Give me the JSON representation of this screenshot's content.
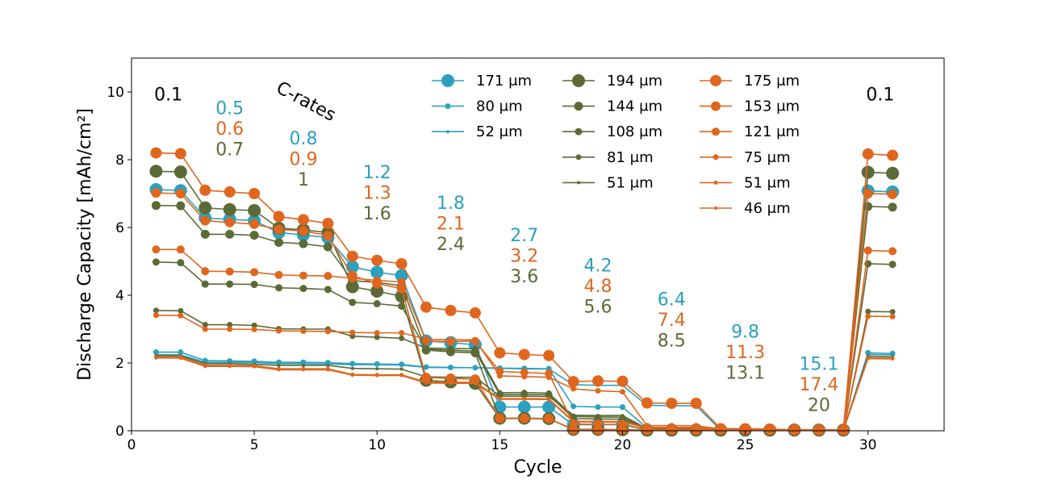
{
  "chart_data": {
    "type": "line",
    "xlabel": "Cycle",
    "ylabel": "Discharge Capacity [mAh/cm²]",
    "xlim": [
      0,
      33.1
    ],
    "ylim": [
      0,
      11
    ],
    "xticks": [
      0,
      5,
      10,
      15,
      20,
      25,
      30
    ],
    "yticks": [
      0,
      2,
      4,
      6,
      8,
      10
    ],
    "grid": false,
    "legend_position": "top-center",
    "colors": {
      "blue": "#2ca0c0",
      "olive": "#5b6b36",
      "orange": "#e0661e"
    },
    "x": [
      1,
      2,
      3,
      4,
      5,
      6,
      7,
      8,
      9,
      10,
      11,
      12,
      13,
      14,
      15,
      16,
      17,
      18,
      19,
      20,
      21,
      22,
      23,
      24,
      25,
      26,
      27,
      28,
      29,
      30,
      31
    ],
    "series": [
      {
        "name": "171 μm",
        "color": "blue",
        "size": 8,
        "values": [
          7.12,
          7.09,
          6.28,
          6.24,
          6.2,
          5.85,
          5.78,
          5.7,
          4.84,
          4.68,
          4.58,
          2.65,
          2.6,
          2.54,
          0.7,
          0.7,
          0.7,
          0.18,
          0.18,
          0.18,
          0.02,
          0.02,
          0.02,
          0.02,
          0.02,
          0.02,
          0.02,
          0.02,
          0.02,
          7.08,
          7.05
        ]
      },
      {
        "name": "80 μm",
        "color": "blue",
        "size": 3.5,
        "values": [
          2.32,
          2.32,
          2.07,
          2.06,
          2.05,
          2.02,
          2.02,
          2.01,
          1.98,
          1.97,
          1.96,
          1.88,
          1.87,
          1.86,
          1.85,
          1.84,
          1.83,
          0.72,
          0.7,
          0.7,
          0.08,
          0.07,
          0.07,
          0.02,
          0.02,
          0.02,
          0.02,
          0.02,
          0.02,
          2.3,
          2.28
        ]
      },
      {
        "name": "52 μm",
        "color": "blue",
        "size": 2,
        "values": [
          2.25,
          2.24,
          2.02,
          2.02,
          2.01,
          1.98,
          1.98,
          1.97,
          1.95,
          1.95,
          1.94,
          1.87,
          1.86,
          1.86,
          1.84,
          1.83,
          1.82,
          1.36,
          1.34,
          1.34,
          0.75,
          0.74,
          0.74,
          0.02,
          0.02,
          0.02,
          0.02,
          0.02,
          0.02,
          2.25,
          2.24
        ]
      },
      {
        "name": "194 μm",
        "color": "olive",
        "size": 8,
        "values": [
          7.66,
          7.64,
          6.58,
          6.53,
          6.5,
          5.98,
          5.93,
          5.85,
          4.25,
          4.12,
          3.97,
          1.49,
          1.44,
          1.4,
          0.37,
          0.37,
          0.36,
          0.04,
          0.04,
          0.03,
          0.02,
          0.02,
          0.02,
          0.02,
          0.02,
          0.02,
          0.02,
          0.02,
          0.02,
          7.63,
          7.6
        ]
      },
      {
        "name": "144 μm",
        "color": "olive",
        "size": 5.5,
        "values": [
          6.65,
          6.64,
          5.8,
          5.8,
          5.77,
          5.56,
          5.52,
          5.43,
          4.43,
          4.38,
          4.28,
          2.38,
          2.33,
          2.3,
          0.36,
          0.36,
          0.35,
          0.04,
          0.04,
          0.03,
          0.02,
          0.02,
          0.02,
          0.02,
          0.02,
          0.02,
          0.02,
          0.02,
          0.02,
          6.62,
          6.6
        ]
      },
      {
        "name": "108 μm",
        "color": "olive",
        "size": 4.5,
        "values": [
          4.98,
          4.96,
          4.33,
          4.33,
          4.32,
          4.22,
          4.2,
          4.17,
          3.79,
          3.75,
          3.68,
          2.4,
          2.38,
          2.35,
          1.07,
          1.07,
          1.06,
          0.36,
          0.35,
          0.34,
          0.04,
          0.04,
          0.04,
          0.02,
          0.02,
          0.02,
          0.02,
          0.02,
          0.02,
          4.93,
          4.91
        ]
      },
      {
        "name": "81 μm",
        "color": "olive",
        "size": 3.5,
        "values": [
          3.55,
          3.54,
          3.13,
          3.13,
          3.11,
          3.01,
          3.0,
          3.0,
          2.79,
          2.76,
          2.73,
          2.44,
          2.43,
          2.42,
          1.12,
          1.13,
          1.11,
          0.42,
          0.41,
          0.4,
          0.04,
          0.04,
          0.04,
          0.02,
          0.02,
          0.02,
          0.02,
          0.02,
          0.02,
          3.52,
          3.51
        ]
      },
      {
        "name": "51 μm",
        "color": "olive",
        "size": 2,
        "values": [
          2.22,
          2.21,
          1.98,
          1.98,
          1.96,
          1.93,
          1.93,
          1.93,
          1.84,
          1.83,
          1.82,
          1.59,
          1.58,
          1.58,
          1.02,
          1.02,
          1.01,
          0.46,
          0.45,
          0.45,
          0.06,
          0.06,
          0.06,
          0.02,
          0.02,
          0.02,
          0.02,
          0.02,
          0.02,
          2.2,
          2.18
        ]
      },
      {
        "name": "175 μm",
        "color": "orange",
        "size": 7,
        "values": [
          8.2,
          8.18,
          7.1,
          7.05,
          7.0,
          6.32,
          6.23,
          6.12,
          5.15,
          5.03,
          4.93,
          3.65,
          3.55,
          3.48,
          2.3,
          2.25,
          2.22,
          1.45,
          1.47,
          1.46,
          0.82,
          0.81,
          0.81,
          0.06,
          0.06,
          0.05,
          0.03,
          0.03,
          0.03,
          8.17,
          8.13
        ]
      },
      {
        "name": "153 μm",
        "color": "orange",
        "size": 6,
        "values": [
          7.02,
          7.0,
          6.2,
          6.15,
          6.1,
          5.94,
          5.9,
          5.76,
          4.58,
          4.34,
          4.2,
          1.57,
          1.55,
          1.52,
          0.37,
          0.37,
          0.36,
          0.03,
          0.03,
          0.03,
          0.02,
          0.02,
          0.02,
          0.02,
          0.02,
          0.02,
          0.02,
          0.02,
          0.02,
          7.0,
          6.98
        ]
      },
      {
        "name": "121 μm",
        "color": "orange",
        "size": 5,
        "values": [
          5.35,
          5.35,
          4.71,
          4.7,
          4.68,
          4.6,
          4.58,
          4.57,
          4.5,
          4.44,
          4.39,
          2.65,
          2.63,
          2.65,
          1.75,
          1.72,
          1.69,
          0.2,
          0.19,
          0.19,
          0.04,
          0.04,
          0.04,
          0.02,
          0.02,
          0.02,
          0.02,
          0.02,
          0.02,
          5.32,
          5.3
        ]
      },
      {
        "name": "75 μm",
        "color": "orange",
        "size": 3.5,
        "values": [
          3.41,
          3.4,
          3.0,
          3.0,
          2.99,
          2.95,
          2.94,
          2.93,
          2.9,
          2.89,
          2.89,
          2.7,
          2.69,
          2.68,
          1.62,
          1.6,
          1.58,
          1.24,
          1.18,
          1.15,
          0.15,
          0.15,
          0.15,
          0.05,
          0.05,
          0.04,
          0.03,
          0.03,
          0.03,
          3.38,
          3.37
        ]
      },
      {
        "name": "51 μm",
        "color": "orange",
        "size": 2.5,
        "values": [
          2.18,
          2.18,
          1.93,
          1.93,
          1.92,
          1.83,
          1.83,
          1.83,
          1.66,
          1.65,
          1.65,
          1.44,
          1.43,
          1.43,
          0.95,
          0.95,
          0.94,
          0.28,
          0.28,
          0.27,
          0.1,
          0.1,
          0.1,
          0.03,
          0.03,
          0.03,
          0.02,
          0.02,
          0.02,
          2.15,
          2.14
        ]
      },
      {
        "name": "46 μm",
        "color": "orange",
        "size": 2,
        "values": [
          2.15,
          2.14,
          1.9,
          1.9,
          1.89,
          1.8,
          1.8,
          1.8,
          1.64,
          1.63,
          1.63,
          1.41,
          1.4,
          1.4,
          0.93,
          0.93,
          0.92,
          0.26,
          0.26,
          0.25,
          0.09,
          0.09,
          0.09,
          0.02,
          0.02,
          0.02,
          0.02,
          0.02,
          0.02,
          2.13,
          2.12
        ]
      }
    ],
    "legend_columns": [
      [
        0,
        1,
        2
      ],
      [
        3,
        4,
        5,
        6,
        7
      ],
      [
        8,
        9,
        10,
        11,
        12,
        13
      ]
    ],
    "annotations": {
      "crates_label": "C-rates",
      "groups": [
        {
          "x": 1.5,
          "y": 9.75,
          "lines": [
            {
              "text": "0.1",
              "color": "black"
            }
          ]
        },
        {
          "x": 30.5,
          "y": 9.75,
          "lines": [
            {
              "text": "0.1",
              "color": "black"
            }
          ]
        },
        {
          "x": 4.0,
          "y": 9.35,
          "lines": [
            {
              "text": "0.5",
              "color": "blue"
            },
            {
              "text": "0.6",
              "color": "orange"
            },
            {
              "text": "0.7",
              "color": "olive"
            }
          ]
        },
        {
          "x": 7.0,
          "y": 8.45,
          "lines": [
            {
              "text": "0.8",
              "color": "blue"
            },
            {
              "text": "0.9",
              "color": "orange"
            },
            {
              "text": "1",
              "color": "olive"
            }
          ]
        },
        {
          "x": 10.0,
          "y": 7.45,
          "lines": [
            {
              "text": "1.2",
              "color": "blue"
            },
            {
              "text": "1.3",
              "color": "orange"
            },
            {
              "text": "1.6",
              "color": "olive"
            }
          ]
        },
        {
          "x": 13.0,
          "y": 6.55,
          "lines": [
            {
              "text": "1.8",
              "color": "blue"
            },
            {
              "text": "2.1",
              "color": "orange"
            },
            {
              "text": "2.4",
              "color": "olive"
            }
          ]
        },
        {
          "x": 16.0,
          "y": 5.6,
          "lines": [
            {
              "text": "2.7",
              "color": "blue"
            },
            {
              "text": "3.2",
              "color": "orange"
            },
            {
              "text": "3.6",
              "color": "olive"
            }
          ]
        },
        {
          "x": 19.0,
          "y": 4.7,
          "lines": [
            {
              "text": "4.2",
              "color": "blue"
            },
            {
              "text": "4.8",
              "color": "orange"
            },
            {
              "text": "5.6",
              "color": "olive"
            }
          ]
        },
        {
          "x": 22.0,
          "y": 3.7,
          "lines": [
            {
              "text": "6.4",
              "color": "blue"
            },
            {
              "text": "7.4",
              "color": "orange"
            },
            {
              "text": "8.5",
              "color": "olive"
            }
          ]
        },
        {
          "x": 25.0,
          "y": 2.75,
          "lines": [
            {
              "text": "9.8",
              "color": "blue"
            },
            {
              "text": "11.3",
              "color": "orange"
            },
            {
              "text": "13.1",
              "color": "olive"
            }
          ]
        },
        {
          "x": 28.0,
          "y": 1.8,
          "lines": [
            {
              "text": "15.1",
              "color": "blue"
            },
            {
              "text": "17.4",
              "color": "orange"
            },
            {
              "text": "20",
              "color": "olive"
            }
          ]
        }
      ]
    }
  }
}
